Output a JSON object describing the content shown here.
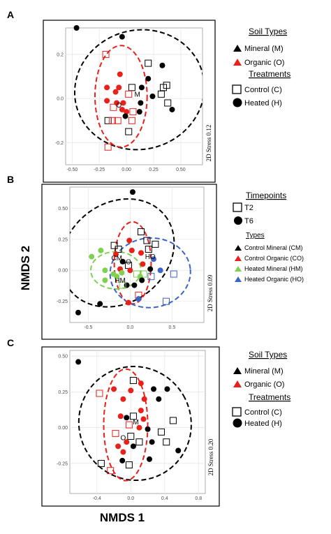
{
  "figure": {
    "y_axis_title": "NMDS 2",
    "x_axis_title": "NMDS 1"
  },
  "chart_data": [
    {
      "panel": "A",
      "type": "scatter",
      "stress_label": "2D Stress 0.12",
      "x_ticks": [
        "-0.50",
        "-0.25",
        "0.00",
        "0.25",
        "0.50"
      ],
      "y_ticks": [
        "0.2",
        "0.0",
        "-0.2"
      ],
      "xlim": [
        -0.56,
        0.7
      ],
      "ylim": [
        -0.3,
        0.32
      ],
      "grid": true,
      "legend": [
        {
          "title": "Soil Types",
          "items": [
            {
              "label": "Mineral (M)",
              "symbol": "triangle",
              "color": "#000000"
            },
            {
              "label": "Organic (O)",
              "symbol": "triangle",
              "color": "#e8211b"
            }
          ]
        },
        {
          "title": "Treatments",
          "items": [
            {
              "label": "Control (C)",
              "symbol": "square-open",
              "color": "#000000"
            },
            {
              "label": "Heated (H)",
              "symbol": "circle",
              "color": "#000000"
            }
          ]
        }
      ],
      "centroid_labels": [
        {
          "label": "M",
          "x": 0.1,
          "y": 0.02
        },
        {
          "label": "O",
          "x": -0.07,
          "y": -0.03
        }
      ],
      "points": [
        {
          "x": -0.46,
          "y": 0.32,
          "shape": "circle",
          "color": "#000000"
        },
        {
          "x": -0.04,
          "y": 0.28,
          "shape": "circle",
          "color": "#000000"
        },
        {
          "x": -0.19,
          "y": 0.2,
          "shape": "square",
          "color": "#e8211b"
        },
        {
          "x": 0.2,
          "y": 0.16,
          "shape": "square",
          "color": "#000000"
        },
        {
          "x": 0.33,
          "y": 0.15,
          "shape": "circle",
          "color": "#000000"
        },
        {
          "x": -0.06,
          "y": 0.11,
          "shape": "circle",
          "color": "#e8211b"
        },
        {
          "x": 0.2,
          "y": 0.09,
          "shape": "circle",
          "color": "#000000"
        },
        {
          "x": -0.18,
          "y": 0.05,
          "shape": "circle",
          "color": "#e8211b"
        },
        {
          "x": -0.07,
          "y": 0.05,
          "shape": "circle",
          "color": "#e8211b"
        },
        {
          "x": 0.05,
          "y": 0.05,
          "shape": "square",
          "color": "#000000"
        },
        {
          "x": 0.14,
          "y": 0.05,
          "shape": "circle",
          "color": "#000000"
        },
        {
          "x": 0.34,
          "y": 0.05,
          "shape": "square",
          "color": "#000000"
        },
        {
          "x": 0.37,
          "y": 0.06,
          "shape": "square",
          "color": "#000000"
        },
        {
          "x": -0.1,
          "y": 0.03,
          "shape": "circle",
          "color": "#e8211b"
        },
        {
          "x": 0.02,
          "y": 0.02,
          "shape": "square",
          "color": "#e8211b"
        },
        {
          "x": 0.24,
          "y": 0.01,
          "shape": "circle",
          "color": "#000000"
        },
        {
          "x": 0.32,
          "y": 0.02,
          "shape": "square",
          "color": "#000000"
        },
        {
          "x": -0.18,
          "y": -0.01,
          "shape": "circle",
          "color": "#e8211b"
        },
        {
          "x": -0.03,
          "y": -0.02,
          "shape": "circle",
          "color": "#e8211b"
        },
        {
          "x": -0.09,
          "y": -0.02,
          "shape": "circle",
          "color": "#e8211b"
        },
        {
          "x": 0.13,
          "y": -0.02,
          "shape": "circle",
          "color": "#000000"
        },
        {
          "x": 0.38,
          "y": -0.02,
          "shape": "square",
          "color": "#000000"
        },
        {
          "x": -0.12,
          "y": -0.04,
          "shape": "square",
          "color": "#e8211b"
        },
        {
          "x": -0.04,
          "y": -0.05,
          "shape": "circle",
          "color": "#e8211b"
        },
        {
          "x": 0.0,
          "y": -0.06,
          "shape": "circle",
          "color": "#e8211b"
        },
        {
          "x": 0.06,
          "y": -0.06,
          "shape": "square",
          "color": "#e8211b"
        },
        {
          "x": 0.12,
          "y": -0.06,
          "shape": "circle",
          "color": "#000000"
        },
        {
          "x": 0.42,
          "y": -0.05,
          "shape": "circle",
          "color": "#000000"
        },
        {
          "x": -0.01,
          "y": -0.08,
          "shape": "circle",
          "color": "#000000"
        },
        {
          "x": -0.17,
          "y": -0.1,
          "shape": "square",
          "color": "#000000"
        },
        {
          "x": -0.13,
          "y": -0.1,
          "shape": "square",
          "color": "#e8211b"
        },
        {
          "x": -0.08,
          "y": -0.1,
          "shape": "square",
          "color": "#e8211b"
        },
        {
          "x": 0.05,
          "y": -0.1,
          "shape": "square",
          "color": "#e8211b"
        },
        {
          "x": 0.02,
          "y": -0.15,
          "shape": "square",
          "color": "#000000"
        },
        {
          "x": -0.17,
          "y": -0.22,
          "shape": "square",
          "color": "#e8211b"
        }
      ],
      "ellipses": [
        {
          "color": "#000000",
          "cx": 0.12,
          "cy": 0.04,
          "rx": 0.6,
          "ry": 0.27,
          "rot": -15
        },
        {
          "color": "#e8211b",
          "cx": -0.05,
          "cy": 0.01,
          "rx": 0.24,
          "ry": 0.23,
          "rot": 0
        }
      ]
    },
    {
      "panel": "B",
      "type": "scatter",
      "stress_label": "2D Stress 0.09",
      "x_ticks": [
        "-0.5",
        "0.0",
        "0.5"
      ],
      "y_ticks": [
        "0.50",
        "0.25",
        "0.00",
        "-0.25"
      ],
      "xlim": [
        -0.72,
        0.88
      ],
      "ylim": [
        -0.42,
        0.67
      ],
      "grid": true,
      "legend": [
        {
          "title": "Timepoints",
          "items": [
            {
              "label": "T2",
              "symbol": "square-open",
              "color": "#000000"
            },
            {
              "label": "T6",
              "symbol": "circle",
              "color": "#000000"
            }
          ]
        },
        {
          "title": "Types",
          "items": [
            {
              "label": "Control Mineral (CM)",
              "symbol": "triangle",
              "color": "#000000"
            },
            {
              "label": "Control Organic (CO)",
              "symbol": "triangle",
              "color": "#e8211b"
            },
            {
              "label": "Heated Mineral (HM)",
              "symbol": "triangle",
              "color": "#7fd14f"
            },
            {
              "label": "Heated Organic (HO)",
              "symbol": "triangle",
              "color": "#3a64c8"
            }
          ]
        }
      ],
      "centroid_labels": [
        {
          "label": "CM",
          "x": -0.16,
          "y": 0.1
        },
        {
          "label": "CO",
          "x": -0.05,
          "y": 0.07
        },
        {
          "label": "HM",
          "x": -0.12,
          "y": -0.08
        },
        {
          "label": "HO",
          "x": 0.24,
          "y": 0.11
        }
      ],
      "points": [
        {
          "x": 0.03,
          "y": 0.63,
          "shape": "circle",
          "color": "#000000"
        },
        {
          "x": 0.13,
          "y": 0.31,
          "shape": "square",
          "color": "#000000"
        },
        {
          "x": -0.01,
          "y": 0.24,
          "shape": "circle",
          "color": "#e8211b"
        },
        {
          "x": 0.2,
          "y": 0.24,
          "shape": "square",
          "color": "#000000"
        },
        {
          "x": 0.3,
          "y": 0.21,
          "shape": "square",
          "color": "#000000"
        },
        {
          "x": -0.19,
          "y": 0.2,
          "shape": "square",
          "color": "#000000"
        },
        {
          "x": -0.35,
          "y": 0.16,
          "shape": "circle",
          "color": "#7fd14f"
        },
        {
          "x": -0.14,
          "y": 0.17,
          "shape": "square",
          "color": "#000000"
        },
        {
          "x": 0.02,
          "y": 0.16,
          "shape": "circle",
          "color": "#e8211b"
        },
        {
          "x": 0.22,
          "y": 0.17,
          "shape": "square",
          "color": "#000000"
        },
        {
          "x": -0.17,
          "y": 0.13,
          "shape": "circle",
          "color": "#e8211b"
        },
        {
          "x": 0.13,
          "y": 0.14,
          "shape": "circle",
          "color": "#e8211b"
        },
        {
          "x": -0.46,
          "y": 0.11,
          "shape": "circle",
          "color": "#7fd14f"
        },
        {
          "x": -0.09,
          "y": 0.07,
          "shape": "circle",
          "color": "#000000"
        },
        {
          "x": 0.28,
          "y": 0.09,
          "shape": "circle",
          "color": "#3a64c8"
        },
        {
          "x": -0.02,
          "y": 0.04,
          "shape": "square",
          "color": "#000000"
        },
        {
          "x": 0.15,
          "y": 0.05,
          "shape": "circle",
          "color": "#e8211b"
        },
        {
          "x": -0.12,
          "y": 0.01,
          "shape": "circle",
          "color": "#e8211b"
        },
        {
          "x": -0.3,
          "y": 0.0,
          "shape": "circle",
          "color": "#7fd14f"
        },
        {
          "x": 0.0,
          "y": 0.0,
          "shape": "circle",
          "color": "#e8211b"
        },
        {
          "x": 0.24,
          "y": 0.01,
          "shape": "circle",
          "color": "#000000"
        },
        {
          "x": 0.36,
          "y": 0.0,
          "shape": "circle",
          "color": "#3a64c8"
        },
        {
          "x": -0.2,
          "y": -0.03,
          "shape": "circle",
          "color": "#7fd14f"
        },
        {
          "x": -0.16,
          "y": -0.05,
          "shape": "circle",
          "color": "#7fd14f"
        },
        {
          "x": -0.1,
          "y": -0.02,
          "shape": "circle",
          "color": "#7fd14f"
        },
        {
          "x": 0.08,
          "y": -0.03,
          "shape": "square",
          "color": "#7fd14f"
        },
        {
          "x": 0.16,
          "y": -0.03,
          "shape": "square",
          "color": "#7fd14f"
        },
        {
          "x": 0.12,
          "y": -0.05,
          "shape": "circle",
          "color": "#7fd14f"
        },
        {
          "x": 0.25,
          "y": -0.05,
          "shape": "square",
          "color": "#3a64c8"
        },
        {
          "x": 0.52,
          "y": -0.03,
          "shape": "square",
          "color": "#3a64c8"
        },
        {
          "x": -0.3,
          "y": -0.08,
          "shape": "circle",
          "color": "#7fd14f"
        },
        {
          "x": 0.14,
          "y": -0.08,
          "shape": "circle",
          "color": "#000000"
        },
        {
          "x": -0.04,
          "y": -0.12,
          "shape": "circle",
          "color": "#000000"
        },
        {
          "x": -0.09,
          "y": -0.12,
          "shape": "square",
          "color": "#7fd14f"
        },
        {
          "x": 0.05,
          "y": -0.12,
          "shape": "circle",
          "color": "#000000"
        },
        {
          "x": 0.1,
          "y": -0.2,
          "shape": "square",
          "color": "#e8211b"
        },
        {
          "x": 0.1,
          "y": -0.23,
          "shape": "circle",
          "color": "#3a64c8"
        },
        {
          "x": 0.43,
          "y": -0.25,
          "shape": "square",
          "color": "#3a64c8"
        },
        {
          "x": -0.02,
          "y": -0.26,
          "shape": "circle",
          "color": "#e8211b"
        },
        {
          "x": -0.36,
          "y": -0.27,
          "shape": "circle",
          "color": "#000000"
        },
        {
          "x": -0.62,
          "y": -0.34,
          "shape": "circle",
          "color": "#000000"
        }
      ],
      "ellipses": [
        {
          "color": "#000000",
          "cx": -0.15,
          "cy": 0.14,
          "rx": 0.72,
          "ry": 0.4,
          "rot": -38
        },
        {
          "color": "#e8211b",
          "cx": 0.03,
          "cy": 0.06,
          "rx": 0.22,
          "ry": 0.33,
          "rot": 0
        },
        {
          "color": "#7fd14f",
          "cx": -0.17,
          "cy": 0.0,
          "rx": 0.3,
          "ry": 0.15,
          "rot": 0
        },
        {
          "color": "#3a64c8",
          "cx": 0.24,
          "cy": -0.02,
          "rx": 0.48,
          "ry": 0.28,
          "rot": -5
        }
      ]
    },
    {
      "panel": "C",
      "type": "scatter",
      "stress_label": "2D Stress 0.20",
      "x_ticks": [
        "-0.4",
        "0.0",
        "0.4",
        "0.8"
      ],
      "y_ticks": [
        "0.50",
        "0.25",
        "0.00",
        "-0.25"
      ],
      "xlim": [
        -0.72,
        0.88
      ],
      "ylim": [
        -0.46,
        0.54
      ],
      "grid": true,
      "legend": [
        {
          "title": "Soil Types",
          "items": [
            {
              "label": "Mineral (M)",
              "symbol": "triangle",
              "color": "#000000"
            },
            {
              "label": "Organic (O)",
              "symbol": "triangle",
              "color": "#e8211b"
            }
          ]
        },
        {
          "title": "Treatments",
          "items": [
            {
              "label": "Control (C)",
              "symbol": "square-open",
              "color": "#000000"
            },
            {
              "label": "Heated (H)",
              "symbol": "circle",
              "color": "#000000"
            }
          ]
        }
      ],
      "centroid_labels": [
        {
          "label": "M",
          "x": 0.06,
          "y": 0.04
        },
        {
          "label": "O",
          "x": -0.09,
          "y": -0.07
        }
      ],
      "points": [
        {
          "x": -0.62,
          "y": 0.46,
          "shape": "circle",
          "color": "#000000"
        },
        {
          "x": 0.03,
          "y": 0.33,
          "shape": "square",
          "color": "#000000"
        },
        {
          "x": 0.12,
          "y": 0.31,
          "shape": "circle",
          "color": "#e8211b"
        },
        {
          "x": -0.2,
          "y": 0.27,
          "shape": "circle",
          "color": "#e8211b"
        },
        {
          "x": 0.0,
          "y": 0.26,
          "shape": "circle",
          "color": "#e8211b"
        },
        {
          "x": 0.27,
          "y": 0.27,
          "shape": "circle",
          "color": "#000000"
        },
        {
          "x": 0.43,
          "y": 0.27,
          "shape": "circle",
          "color": "#000000"
        },
        {
          "x": -0.37,
          "y": 0.24,
          "shape": "square",
          "color": "#e8211b"
        },
        {
          "x": -0.09,
          "y": 0.2,
          "shape": "circle",
          "color": "#e8211b"
        },
        {
          "x": 0.16,
          "y": 0.2,
          "shape": "circle",
          "color": "#e8211b"
        },
        {
          "x": 0.33,
          "y": 0.2,
          "shape": "circle",
          "color": "#000000"
        },
        {
          "x": 0.12,
          "y": 0.12,
          "shape": "circle",
          "color": "#e8211b"
        },
        {
          "x": -0.12,
          "y": 0.08,
          "shape": "circle",
          "color": "#e8211b"
        },
        {
          "x": -0.05,
          "y": 0.07,
          "shape": "circle",
          "color": "#000000"
        },
        {
          "x": 0.03,
          "y": 0.08,
          "shape": "square",
          "color": "#000000"
        },
        {
          "x": 0.15,
          "y": 0.06,
          "shape": "circle",
          "color": "#e8211b"
        },
        {
          "x": 0.5,
          "y": 0.05,
          "shape": "square",
          "color": "#000000"
        },
        {
          "x": -0.02,
          "y": 0.02,
          "shape": "square",
          "color": "#e8211b"
        },
        {
          "x": 0.1,
          "y": 0.0,
          "shape": "circle",
          "color": "#e8211b"
        },
        {
          "x": 0.2,
          "y": -0.01,
          "shape": "circle",
          "color": "#000000"
        },
        {
          "x": -0.18,
          "y": -0.04,
          "shape": "square",
          "color": "#e8211b"
        },
        {
          "x": 0.0,
          "y": -0.06,
          "shape": "square",
          "color": "#000000"
        },
        {
          "x": 0.36,
          "y": -0.03,
          "shape": "square",
          "color": "#000000"
        },
        {
          "x": -0.05,
          "y": -0.1,
          "shape": "circle",
          "color": "#e8211b"
        },
        {
          "x": 0.1,
          "y": -0.1,
          "shape": "square",
          "color": "#000000"
        },
        {
          "x": 0.25,
          "y": -0.1,
          "shape": "circle",
          "color": "#000000"
        },
        {
          "x": 0.42,
          "y": -0.1,
          "shape": "square",
          "color": "#000000"
        },
        {
          "x": -0.15,
          "y": -0.13,
          "shape": "circle",
          "color": "#e8211b"
        },
        {
          "x": 0.03,
          "y": -0.13,
          "shape": "circle",
          "color": "#000000"
        },
        {
          "x": -0.09,
          "y": -0.17,
          "shape": "circle",
          "color": "#e8211b"
        },
        {
          "x": 0.22,
          "y": -0.22,
          "shape": "circle",
          "color": "#000000"
        },
        {
          "x": 0.56,
          "y": -0.16,
          "shape": "circle",
          "color": "#000000"
        },
        {
          "x": -0.35,
          "y": -0.25,
          "shape": "square",
          "color": "#000000"
        },
        {
          "x": -0.1,
          "y": -0.23,
          "shape": "circle",
          "color": "#000000"
        },
        {
          "x": -0.02,
          "y": -0.26,
          "shape": "square",
          "color": "#000000"
        },
        {
          "x": -0.24,
          "y": -0.3,
          "shape": "square",
          "color": "#e8211b"
        }
      ],
      "ellipses": [
        {
          "color": "#000000",
          "cx": 0.05,
          "cy": 0.03,
          "rx": 0.66,
          "ry": 0.4,
          "rot": -30
        },
        {
          "color": "#e8211b",
          "cx": -0.06,
          "cy": 0.02,
          "rx": 0.26,
          "ry": 0.39,
          "rot": 0
        }
      ]
    }
  ]
}
